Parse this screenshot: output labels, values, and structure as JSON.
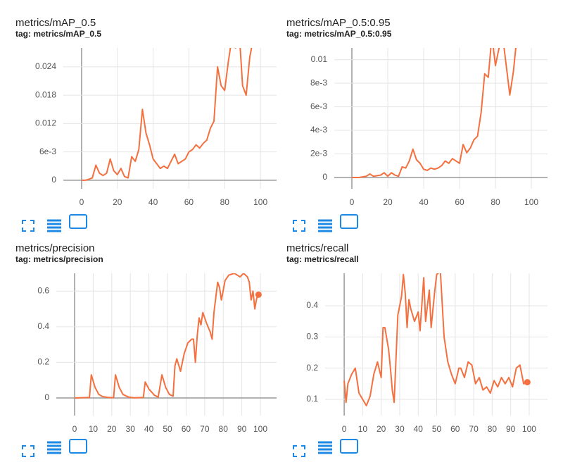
{
  "chart_data": [
    {
      "type": "line",
      "title": "metrics/mAP_0.5",
      "subtitle": "tag: metrics/mAP_0.5",
      "x": [
        0,
        2,
        4,
        6,
        8,
        10,
        12,
        14,
        16,
        18,
        20,
        22,
        24,
        26,
        28,
        30,
        32,
        34,
        36,
        38,
        40,
        42,
        44,
        46,
        48,
        50,
        52,
        54,
        56,
        58,
        60,
        62,
        64,
        66,
        68,
        70,
        72,
        74,
        76,
        78,
        80,
        82,
        84,
        86,
        88,
        90,
        92,
        94,
        96
      ],
      "series": [
        {
          "color": "#f4703f",
          "values": [
            0,
            0,
            0.0002,
            0.0005,
            0.0032,
            0.0015,
            0.001,
            0.0015,
            0.0045,
            0.002,
            0.0012,
            0.0025,
            0.0008,
            0.0005,
            0.005,
            0.004,
            0.0065,
            0.015,
            0.01,
            0.0075,
            0.0045,
            0.0035,
            0.0025,
            0.003,
            0.0025,
            0.004,
            0.0055,
            0.0035,
            0.004,
            0.0045,
            0.006,
            0.0065,
            0.0075,
            0.0068,
            0.0078,
            0.0085,
            0.011,
            0.0125,
            0.024,
            0.02,
            0.019,
            0.025,
            0.03,
            0.028,
            0.032,
            0.02,
            0.018,
            0.026,
            0.03
          ]
        }
      ],
      "xlim": [
        -10.2,
        109
      ],
      "ylim": [
        -0.0018,
        0.028
      ],
      "xticks": [
        0,
        20,
        40,
        60,
        80,
        100
      ],
      "yticks": [
        0,
        {
          "value": 0.006,
          "label": "6e-3"
        },
        0.012,
        0.018,
        0.024
      ],
      "grid": true,
      "end_marker": false
    },
    {
      "type": "line",
      "title": "metrics/mAP_0.5:0.95",
      "subtitle": "tag: metrics/mAP_0.5:0.95",
      "x": [
        0,
        4,
        8,
        10,
        12,
        16,
        18,
        20,
        22,
        24,
        26,
        28,
        30,
        32,
        34,
        36,
        38,
        40,
        42,
        44,
        46,
        48,
        50,
        52,
        54,
        56,
        58,
        60,
        62,
        64,
        66,
        68,
        70,
        72,
        74,
        76,
        78,
        80,
        82,
        84,
        86,
        88,
        90,
        92
      ],
      "series": [
        {
          "color": "#f4703f",
          "values": [
            0,
            0,
            0.0001,
            0.0003,
            0.0001,
            0.0002,
            0.0004,
            0.0001,
            0.0004,
            0.0002,
            0.0001,
            0.0009,
            0.0008,
            0.0014,
            0.0024,
            0.0015,
            0.0012,
            0.0007,
            0.0006,
            0.0008,
            0.0007,
            0.0008,
            0.001,
            0.0014,
            0.0012,
            0.0016,
            0.0014,
            0.0012,
            0.0028,
            0.0021,
            0.0025,
            0.0032,
            0.0035,
            0.0055,
            0.0088,
            0.0085,
            0.012,
            0.0095,
            0.011,
            0.012,
            0.0095,
            0.007,
            0.009,
            0.012
          ]
        }
      ],
      "xlim": [
        -9.8,
        109
      ],
      "ylim": [
        -0.00096,
        0.011
      ],
      "xticks": [
        0,
        20,
        40,
        60,
        80,
        100
      ],
      "yticks": [
        0,
        {
          "value": 0.002,
          "label": "2e-3"
        },
        {
          "value": 0.004,
          "label": "4e-3"
        },
        {
          "value": 0.006,
          "label": "6e-3"
        },
        {
          "value": 0.008,
          "label": "8e-3"
        },
        0.01
      ],
      "grid": true,
      "end_marker": false
    },
    {
      "type": "line",
      "title": "metrics/precision",
      "subtitle": "tag: metrics/precision",
      "x": [
        0,
        8,
        9,
        11,
        13,
        15,
        18,
        21,
        22,
        24,
        26,
        29,
        32,
        37,
        38,
        40,
        43,
        45,
        47,
        49,
        51,
        53,
        54,
        55,
        57,
        59,
        61,
        63,
        64,
        65,
        66,
        67,
        68,
        69,
        71,
        73,
        74,
        75,
        77,
        78,
        79,
        81,
        83,
        86,
        89,
        91,
        93,
        94,
        95,
        96,
        97,
        98,
        99
      ],
      "series": [
        {
          "color": "#f4703f",
          "values": [
            0,
            0.003,
            0.13,
            0.06,
            0.02,
            0.008,
            0.003,
            0.002,
            0.13,
            0.06,
            0.02,
            0.005,
            0.001,
            0.003,
            0.09,
            0.05,
            0.015,
            0.005,
            0.13,
            0.06,
            0.02,
            0.01,
            0.18,
            0.22,
            0.15,
            0.25,
            0.31,
            0.33,
            0.33,
            0.2,
            0.35,
            0.45,
            0.41,
            0.48,
            0.42,
            0.37,
            0.33,
            0.48,
            0.65,
            0.62,
            0.55,
            0.66,
            0.69,
            0.7,
            0.68,
            0.7,
            0.68,
            0.65,
            0.55,
            0.6,
            0.5,
            0.56,
            0.58
          ]
        }
      ],
      "xlim": [
        -9.85,
        108.7
      ],
      "ylim": [
        -0.099,
        0.7
      ],
      "xticks": [
        0,
        10,
        20,
        30,
        40,
        50,
        60,
        70,
        80,
        90,
        100
      ],
      "yticks": [
        0,
        0.2,
        0.4,
        0.6
      ],
      "grid": true,
      "end_marker": true
    },
    {
      "type": "line",
      "title": "metrics/recall",
      "subtitle": "tag: metrics/recall",
      "x": [
        0,
        1,
        2,
        4,
        6,
        8,
        10,
        12,
        14,
        16,
        18,
        20,
        21,
        22,
        24,
        25,
        26,
        27,
        29,
        31,
        32,
        33,
        34,
        35,
        36,
        38,
        40,
        41,
        43,
        44,
        46,
        47,
        49,
        50,
        52,
        54,
        56,
        58,
        60,
        62,
        63,
        65,
        67,
        69,
        71,
        73,
        75,
        77,
        79,
        81,
        83,
        85,
        87,
        89,
        91,
        93,
        95,
        97,
        99
      ],
      "series": [
        {
          "color": "#f4703f",
          "values": [
            0.16,
            0.09,
            0.15,
            0.18,
            0.2,
            0.12,
            0.1,
            0.08,
            0.11,
            0.18,
            0.22,
            0.17,
            0.33,
            0.33,
            0.26,
            0.2,
            0.13,
            0.09,
            0.37,
            0.43,
            0.5,
            0.44,
            0.33,
            0.42,
            0.39,
            0.35,
            0.38,
            0.32,
            0.49,
            0.35,
            0.45,
            0.33,
            0.45,
            0.5,
            0.51,
            0.3,
            0.22,
            0.18,
            0.15,
            0.2,
            0.2,
            0.17,
            0.22,
            0.21,
            0.15,
            0.17,
            0.13,
            0.14,
            0.12,
            0.16,
            0.14,
            0.17,
            0.15,
            0.17,
            0.14,
            0.2,
            0.21,
            0.15,
            0.155
          ]
        }
      ],
      "xlim": [
        -10.3,
        109.9
      ],
      "ylim": [
        0.048,
        0.504
      ],
      "xticks": [
        0,
        10,
        20,
        30,
        40,
        50,
        60,
        70,
        80,
        90,
        100
      ],
      "yticks": [
        0.1,
        0.2,
        0.3,
        0.4
      ],
      "grid": true,
      "end_marker": true
    }
  ]
}
